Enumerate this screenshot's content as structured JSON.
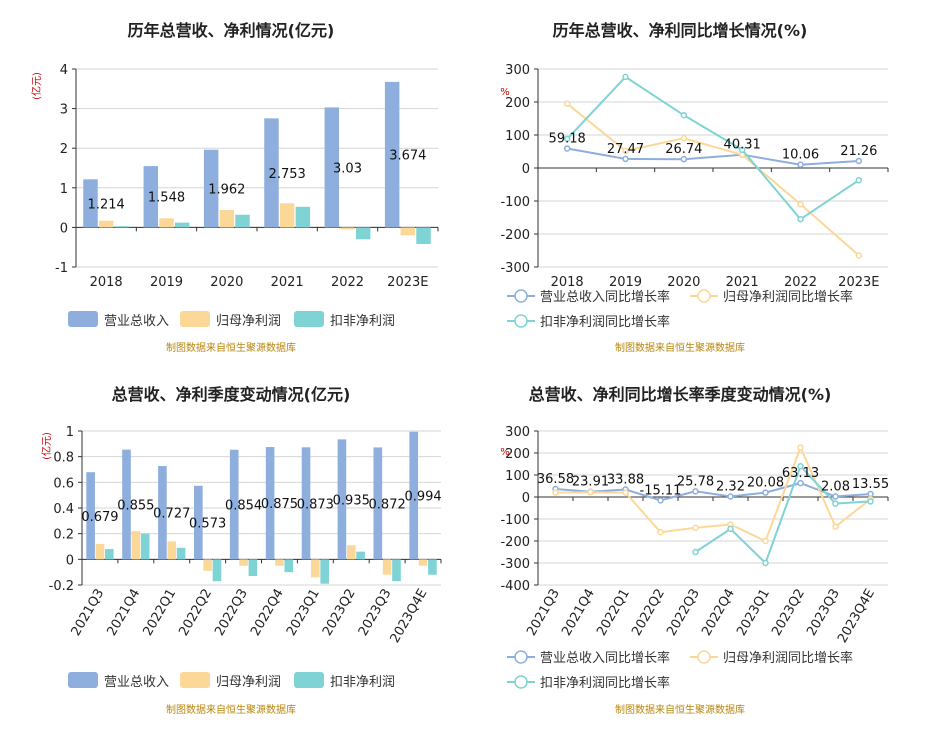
{
  "source_note": "制图数据来自恒生聚源数据库",
  "chart_data": [
    {
      "id": "annual_revenue_profit",
      "type": "bar",
      "title": "历年总营收、净利情况(亿元)",
      "ylabel": "(亿元)",
      "ylim": [
        -1,
        4
      ],
      "yticks": [
        -1,
        0,
        1,
        2,
        3,
        4
      ],
      "categories": [
        "2018",
        "2019",
        "2020",
        "2021",
        "2022",
        "2023E"
      ],
      "series": [
        {
          "name": "营业总收入",
          "color": "#8eaedd",
          "values": [
            1.214,
            1.548,
            1.962,
            2.753,
            3.03,
            3.674
          ],
          "labels": [
            "1.214",
            "1.548",
            "1.962",
            "2.753",
            "3.03",
            "3.674"
          ]
        },
        {
          "name": "归母净利润",
          "color": "#fcd898",
          "values": [
            0.17,
            0.23,
            0.44,
            0.61,
            -0.05,
            -0.2
          ]
        },
        {
          "name": "扣非净利润",
          "color": "#7fd3d4",
          "values": [
            0.03,
            0.12,
            0.32,
            0.52,
            -0.3,
            -0.42
          ]
        }
      ]
    },
    {
      "id": "annual_growth",
      "type": "line",
      "title": "历年总营收、净利同比增长情况(%)",
      "ylabel": "%",
      "ylim": [
        -300,
        300
      ],
      "yticks": [
        -300,
        -200,
        -100,
        0,
        100,
        200,
        300
      ],
      "categories": [
        "2018",
        "2019",
        "2020",
        "2021",
        "2022",
        "2023E"
      ],
      "series": [
        {
          "name": "营业总收入同比增长率",
          "color": "#8eaedd",
          "values": [
            59.18,
            27.47,
            26.74,
            40.31,
            10.06,
            21.26
          ],
          "labels": [
            "59.18",
            "27.47",
            "26.74",
            "40.31",
            "10.06",
            "21.26"
          ]
        },
        {
          "name": "归母净利润同比增长率",
          "color": "#fcd898",
          "values": [
            195,
            52,
            90,
            40,
            -110,
            -265
          ]
        },
        {
          "name": "扣非净利润同比增长率",
          "color": "#7fd3d4",
          "values": [
            88,
            276,
            160,
            55,
            -155,
            -37
          ]
        }
      ]
    },
    {
      "id": "quarterly_revenue_profit",
      "type": "bar",
      "title": "总营收、净利季度变动情况(亿元)",
      "ylabel": "(亿元)",
      "ylim": [
        -0.2,
        1
      ],
      "yticks": [
        -0.2,
        0,
        0.2,
        0.4,
        0.6,
        0.8,
        1
      ],
      "categories": [
        "2021Q3",
        "2021Q4",
        "2022Q1",
        "2022Q2",
        "2022Q3",
        "2022Q4",
        "2023Q1",
        "2023Q2",
        "2023Q3",
        "2023Q4E"
      ],
      "series": [
        {
          "name": "营业总收入",
          "color": "#8eaedd",
          "values": [
            0.679,
            0.855,
            0.727,
            0.573,
            0.854,
            0.875,
            0.873,
            0.935,
            0.872,
            0.994
          ],
          "labels": [
            "0.679",
            "0.855",
            "0.727",
            "0.573",
            "0.854",
            "0.875",
            "0.873",
            "0.935",
            "0.872",
            "0.994"
          ]
        },
        {
          "name": "归母净利润",
          "color": "#fcd898",
          "values": [
            0.12,
            0.22,
            0.14,
            -0.09,
            -0.05,
            -0.05,
            -0.14,
            0.11,
            -0.12,
            -0.05
          ]
        },
        {
          "name": "扣非净利润",
          "color": "#7fd3d4",
          "values": [
            0.08,
            0.2,
            0.09,
            -0.17,
            -0.13,
            -0.1,
            -0.19,
            0.06,
            -0.17,
            -0.12
          ]
        }
      ]
    },
    {
      "id": "quarterly_growth",
      "type": "line",
      "title": "总营收、净利同比增长率季度变动情况(%)",
      "ylabel": "%",
      "ylim": [
        -400,
        300
      ],
      "yticks": [
        -400,
        -300,
        -200,
        -100,
        0,
        100,
        200,
        300
      ],
      "categories": [
        "2021Q3",
        "2021Q4",
        "2022Q1",
        "2022Q2",
        "2022Q3",
        "2022Q4",
        "2023Q1",
        "2023Q2",
        "2023Q3",
        "2023Q4E"
      ],
      "series": [
        {
          "name": "营业总收入同比增长率",
          "color": "#8eaedd",
          "values": [
            36.58,
            23.9,
            33.88,
            -15.11,
            25.78,
            2.32,
            20.08,
            63.13,
            2.08,
            13.55
          ],
          "labels": [
            "36.58",
            "23.91",
            "33.88",
            "-15.11",
            "25.78",
            "2.32",
            "20.08",
            "63.13",
            "2.08",
            "13.55"
          ]
        },
        {
          "name": "归母净利润同比增长率",
          "color": "#fcd898",
          "values": [
            20,
            22,
            20,
            -160,
            -140,
            -125,
            -200,
            225,
            -135,
            -10
          ]
        },
        {
          "name": "扣非净利润同比增长率",
          "color": "#7fd3d4",
          "values": [
            null,
            null,
            null,
            null,
            -250,
            -145,
            -300,
            140,
            -30,
            -20
          ]
        }
      ]
    }
  ]
}
